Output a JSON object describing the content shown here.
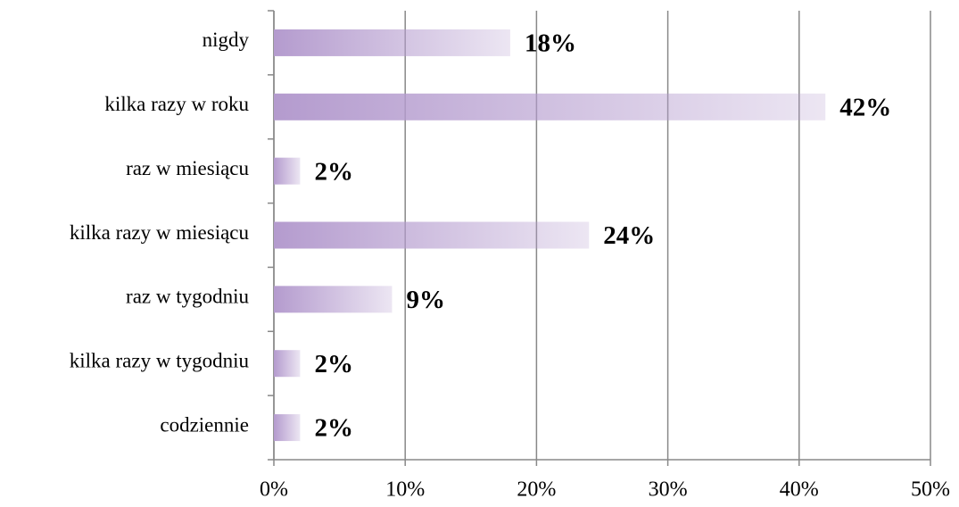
{
  "chart_data": {
    "type": "bar",
    "orientation": "horizontal",
    "categories": [
      "nigdy",
      "kilka razy w roku",
      "raz w miesiącu",
      "kilka razy w miesiącu",
      "raz w tygodniu",
      "kilka razy w tygodniu",
      "codziennie"
    ],
    "values": [
      18,
      42,
      2,
      24,
      9,
      2,
      2
    ],
    "value_labels": [
      "18%",
      "42%",
      "2%",
      "24%",
      "9%",
      "2%",
      "2%"
    ],
    "color": "#b49bce",
    "xlim": [
      0,
      50
    ],
    "xticks": [
      {
        "value": 0,
        "label": "0%"
      },
      {
        "value": 10,
        "label": "10%"
      },
      {
        "value": 20,
        "label": "20%"
      },
      {
        "value": 30,
        "label": "30%"
      },
      {
        "value": 40,
        "label": "40%"
      },
      {
        "value": 50,
        "label": "50%"
      }
    ],
    "grid": true
  }
}
